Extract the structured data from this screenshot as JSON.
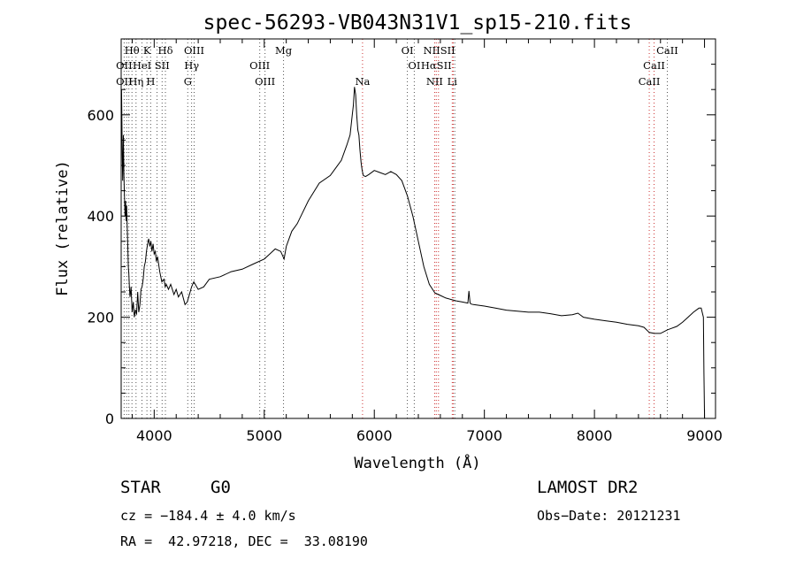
{
  "chart_data": {
    "type": "line",
    "title": "spec-56293-VB043N31V1_sp15-210.fits",
    "xlabel": "Wavelength (Å)",
    "ylabel": "Flux (relative)",
    "xlim": [
      3700,
      9100
    ],
    "ylim": [
      0,
      750
    ],
    "xticks": [
      4000,
      5000,
      6000,
      7000,
      8000,
      9000
    ],
    "yticks": [
      0,
      200,
      400,
      600
    ],
    "series": [
      {
        "name": "flux",
        "x": [
          3700,
          3703,
          3706,
          3710,
          3714,
          3720,
          3725,
          3730,
          3735,
          3740,
          3745,
          3750,
          3755,
          3760,
          3765,
          3770,
          3775,
          3780,
          3790,
          3800,
          3810,
          3820,
          3830,
          3840,
          3850,
          3860,
          3870,
          3880,
          3890,
          3900,
          3910,
          3920,
          3930,
          3940,
          3950,
          3960,
          3970,
          3980,
          3990,
          4000,
          4010,
          4020,
          4030,
          4050,
          4070,
          4090,
          4100,
          4110,
          4130,
          4150,
          4180,
          4200,
          4220,
          4250,
          4280,
          4300,
          4320,
          4340,
          4360,
          4400,
          4450,
          4500,
          4600,
          4700,
          4800,
          4900,
          5000,
          5050,
          5100,
          5150,
          5180,
          5200,
          5250,
          5300,
          5400,
          5500,
          5600,
          5700,
          5750,
          5780,
          5800,
          5810,
          5820,
          5830,
          5840,
          5850,
          5860,
          5870,
          5880,
          5890,
          5900,
          5920,
          5950,
          6000,
          6050,
          6100,
          6150,
          6200,
          6250,
          6300,
          6350,
          6400,
          6450,
          6500,
          6550,
          6600,
          6650,
          6700,
          6750,
          6800,
          6850,
          6860,
          6870,
          6880,
          6900,
          7000,
          7100,
          7200,
          7300,
          7400,
          7500,
          7600,
          7700,
          7800,
          7850,
          7900,
          8000,
          8100,
          8200,
          8300,
          8400,
          8450,
          8498,
          8542,
          8600,
          8662,
          8700,
          8750,
          8800,
          8850,
          8900,
          8950,
          8970,
          8990,
          8995,
          9000
        ],
        "values": [
          580,
          650,
          610,
          520,
          470,
          560,
          480,
          440,
          400,
          430,
          390,
          420,
          380,
          340,
          300,
          285,
          260,
          240,
          260,
          210,
          230,
          200,
          215,
          205,
          250,
          210,
          225,
          255,
          260,
          275,
          300,
          310,
          330,
          345,
          355,
          340,
          350,
          330,
          345,
          325,
          330,
          310,
          320,
          290,
          270,
          275,
          260,
          265,
          255,
          265,
          245,
          255,
          240,
          250,
          225,
          230,
          245,
          260,
          270,
          255,
          260,
          275,
          280,
          290,
          295,
          305,
          315,
          325,
          335,
          330,
          315,
          340,
          370,
          385,
          430,
          465,
          480,
          510,
          540,
          560,
          600,
          620,
          655,
          640,
          600,
          570,
          560,
          530,
          505,
          490,
          480,
          478,
          482,
          490,
          486,
          482,
          488,
          482,
          470,
          440,
          400,
          350,
          300,
          265,
          248,
          243,
          238,
          235,
          232,
          230,
          228,
          252,
          228,
          226,
          225,
          222,
          218,
          214,
          212,
          210,
          210,
          207,
          203,
          205,
          208,
          200,
          196,
          193,
          190,
          186,
          183,
          180,
          170,
          168,
          168,
          175,
          178,
          182,
          190,
          200,
          210,
          218,
          218,
          200,
          90,
          0
        ]
      }
    ],
    "line_labels": [
      {
        "label": "Hθ",
        "wave": 3798,
        "row": 1
      },
      {
        "label": "K",
        "wave": 3934,
        "row": 1
      },
      {
        "label": "Hδ",
        "wave": 4102,
        "row": 1
      },
      {
        "label": "OIII",
        "wave": 4363,
        "row": 1
      },
      {
        "label": "Mg",
        "wave": 5175,
        "row": 1
      },
      {
        "label": "OI",
        "wave": 6300,
        "row": 1
      },
      {
        "label": "NIISII",
        "wave": 6590,
        "row": 1
      },
      {
        "label": "CaII",
        "wave": 8662,
        "row": 1
      },
      {
        "label": "OII",
        "wave": 3727,
        "row": 2
      },
      {
        "label": "HeI",
        "wave": 3889,
        "row": 2
      },
      {
        "label": "SII",
        "wave": 4072,
        "row": 2
      },
      {
        "label": "Hγ",
        "wave": 4340,
        "row": 2
      },
      {
        "label": "OIII",
        "wave": 4959,
        "row": 2
      },
      {
        "label": "OI",
        "wave": 6363,
        "row": 2
      },
      {
        "label": "HαSII",
        "wave": 6563,
        "row": 2
      },
      {
        "label": "CaII",
        "wave": 8542,
        "row": 2
      },
      {
        "label": "OII",
        "wave": 3727,
        "row": 3
      },
      {
        "label": "Hη",
        "wave": 3835,
        "row": 3
      },
      {
        "label": "H",
        "wave": 3968,
        "row": 3
      },
      {
        "label": "G",
        "wave": 4305,
        "row": 3
      },
      {
        "label": "OIII",
        "wave": 5007,
        "row": 3
      },
      {
        "label": "Na",
        "wave": 5893,
        "row": 3
      },
      {
        "label": "NII",
        "wave": 6548,
        "row": 3
      },
      {
        "label": "Li",
        "wave": 6708,
        "row": 3
      },
      {
        "label": "CaII",
        "wave": 8498,
        "row": 3
      }
    ],
    "line_markers": [
      {
        "wave": 3727,
        "color": "#555555"
      },
      {
        "wave": 3750,
        "color": "#555555"
      },
      {
        "wave": 3770,
        "color": "#555555"
      },
      {
        "wave": 3798,
        "color": "#555555"
      },
      {
        "wave": 3835,
        "color": "#555555"
      },
      {
        "wave": 3889,
        "color": "#555555"
      },
      {
        "wave": 3934,
        "color": "#555555"
      },
      {
        "wave": 3968,
        "color": "#555555"
      },
      {
        "wave": 4026,
        "color": "#555555"
      },
      {
        "wave": 4072,
        "color": "#555555"
      },
      {
        "wave": 4102,
        "color": "#555555"
      },
      {
        "wave": 4305,
        "color": "#555555"
      },
      {
        "wave": 4340,
        "color": "#555555"
      },
      {
        "wave": 4363,
        "color": "#555555"
      },
      {
        "wave": 4959,
        "color": "#555555"
      },
      {
        "wave": 5007,
        "color": "#555555"
      },
      {
        "wave": 5175,
        "color": "#555555"
      },
      {
        "wave": 5893,
        "color": "#cc3333"
      },
      {
        "wave": 6300,
        "color": "#555555"
      },
      {
        "wave": 6363,
        "color": "#555555"
      },
      {
        "wave": 6548,
        "color": "#cc3333"
      },
      {
        "wave": 6563,
        "color": "#cc3333"
      },
      {
        "wave": 6583,
        "color": "#cc3333"
      },
      {
        "wave": 6708,
        "color": "#cc3333"
      },
      {
        "wave": 6717,
        "color": "#cc3333"
      },
      {
        "wave": 6731,
        "color": "#555555"
      },
      {
        "wave": 8498,
        "color": "#cc3333"
      },
      {
        "wave": 8542,
        "color": "#cc3333"
      },
      {
        "wave": 8662,
        "color": "#555555"
      }
    ]
  },
  "info": {
    "object_class": "STAR",
    "subclass": "G0",
    "survey": "LAMOST DR2",
    "redshift": "cz = −184.4 ± 4.0 km/s",
    "obs_date": "Obs−Date: 20121231",
    "coords": "RA =  42.97218, DEC =  33.08190"
  },
  "colors": {
    "spectrum": "#000000",
    "axis": "#000000"
  }
}
